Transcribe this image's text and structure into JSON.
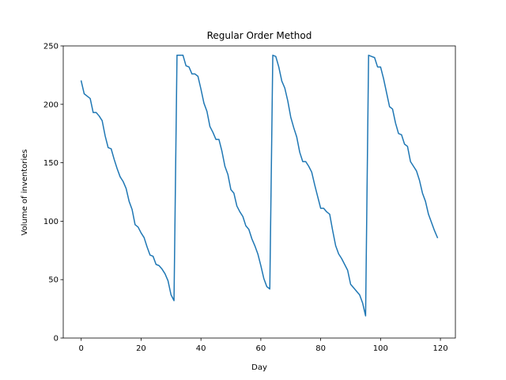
{
  "chart_data": {
    "type": "line",
    "title": "Regular Order Method",
    "xlabel": "Day",
    "ylabel": "Volume of inventories",
    "xlim": [
      -6,
      125
    ],
    "ylim": [
      0,
      250
    ],
    "xticks": [
      0,
      20,
      40,
      60,
      80,
      100,
      120
    ],
    "yticks": [
      0,
      50,
      100,
      150,
      200,
      250
    ],
    "grid": false,
    "series": [
      {
        "color": "#1f77b4",
        "x": [
          0,
          1,
          2,
          3,
          4,
          5,
          6,
          7,
          8,
          9,
          10,
          11,
          12,
          13,
          14,
          15,
          16,
          17,
          18,
          19,
          20,
          21,
          22,
          23,
          24,
          25,
          26,
          27,
          28,
          29,
          30,
          31,
          32,
          33,
          34,
          35,
          36,
          37,
          38,
          39,
          40,
          41,
          42,
          43,
          44,
          45,
          46,
          47,
          48,
          49,
          50,
          51,
          52,
          53,
          54,
          55,
          56,
          57,
          58,
          59,
          60,
          61,
          62,
          63,
          64,
          65,
          66,
          67,
          68,
          69,
          70,
          71,
          72,
          73,
          74,
          75,
          76,
          77,
          78,
          79,
          80,
          81,
          82,
          83,
          84,
          85,
          86,
          87,
          88,
          89,
          90,
          91,
          92,
          93,
          94,
          95,
          96,
          97,
          98,
          99,
          100,
          101,
          102,
          103,
          104,
          105,
          106,
          107,
          108,
          109,
          110,
          111,
          112,
          113,
          114,
          115,
          116,
          117,
          118,
          119
        ],
        "y": [
          220,
          209,
          207,
          205,
          193,
          193,
          190,
          186,
          173,
          163,
          162,
          153,
          145,
          138,
          134,
          128,
          117,
          110,
          97,
          95,
          90,
          86,
          78,
          71,
          70,
          63,
          62,
          59,
          55,
          49,
          37,
          32,
          242,
          242,
          242,
          233,
          232,
          226,
          226,
          224,
          213,
          201,
          194,
          181,
          176,
          170,
          170,
          160,
          147,
          140,
          127,
          124,
          113,
          108,
          104,
          96,
          93,
          85,
          79,
          72,
          62,
          51,
          44,
          42,
          242,
          241,
          232,
          220,
          214,
          203,
          189,
          180,
          172,
          159,
          151,
          151,
          147,
          142,
          131,
          121,
          111,
          111,
          108,
          106,
          92,
          79,
          72,
          68,
          63,
          58,
          46,
          43,
          40,
          37,
          30,
          19,
          242,
          241,
          240,
          232,
          232,
          222,
          210,
          198,
          196,
          184,
          175,
          174,
          166,
          164,
          151,
          147,
          143,
          135,
          124,
          117,
          106,
          99,
          92,
          86
        ]
      }
    ]
  }
}
